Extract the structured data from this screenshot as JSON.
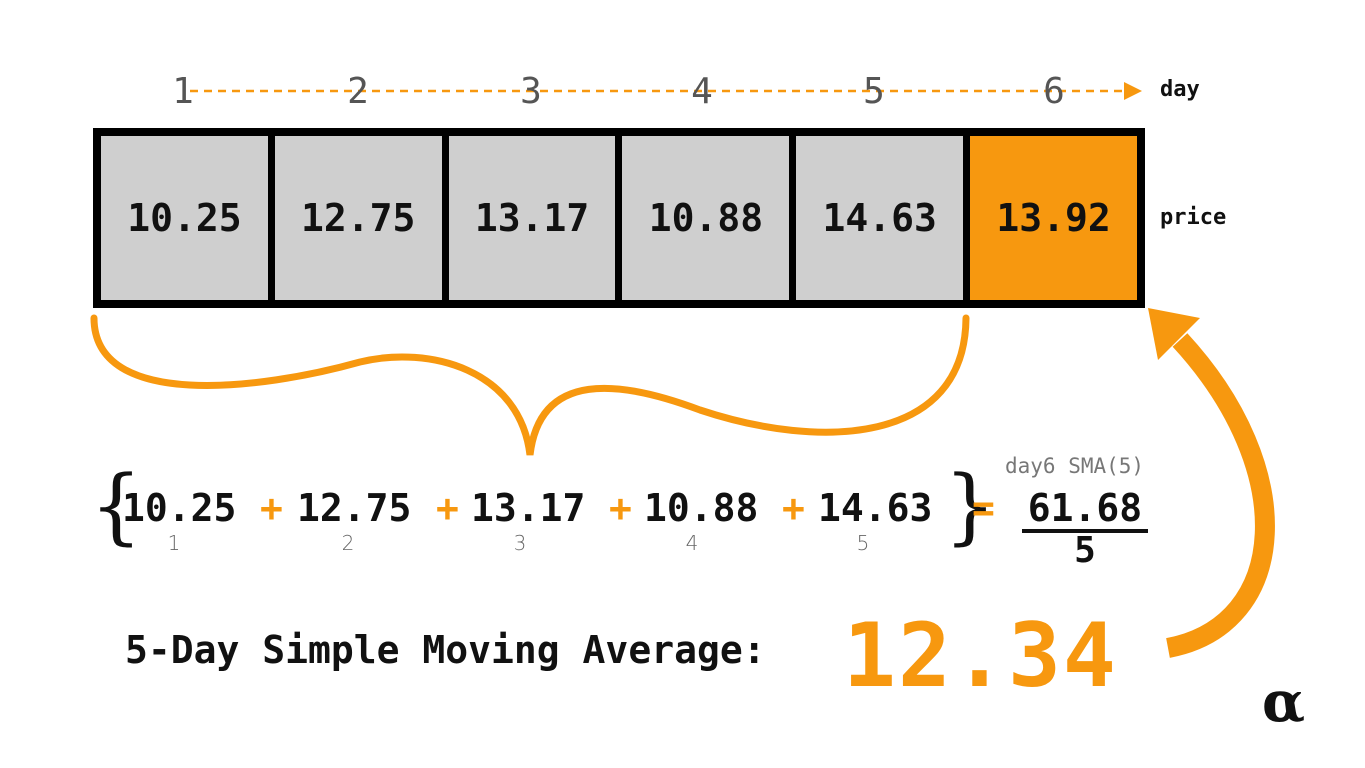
{
  "axis": {
    "days": [
      "1",
      "2",
      "3",
      "4",
      "5",
      "6"
    ],
    "day_label": "day",
    "price_label": "price"
  },
  "prices": [
    "10.25",
    "12.75",
    "13.17",
    "10.88",
    "14.63",
    "13.92"
  ],
  "formula": {
    "terms": [
      "10.25",
      "12.75",
      "13.17",
      "10.88",
      "14.63"
    ],
    "subscripts": [
      "1",
      "2",
      "3",
      "4",
      "5"
    ],
    "plus": "+",
    "equals": "=",
    "open_brace": "{",
    "close_brace": "}",
    "caption": "day6 SMA(5)",
    "numerator": "61.68",
    "denominator": "5"
  },
  "result": {
    "label": "5-Day Simple Moving Average:",
    "value": "12.34"
  },
  "logo_text": "α",
  "colors": {
    "accent": "#f7980f",
    "cell": "#cfcfcf",
    "border": "#000000",
    "text": "#111111",
    "muted": "#666666"
  }
}
